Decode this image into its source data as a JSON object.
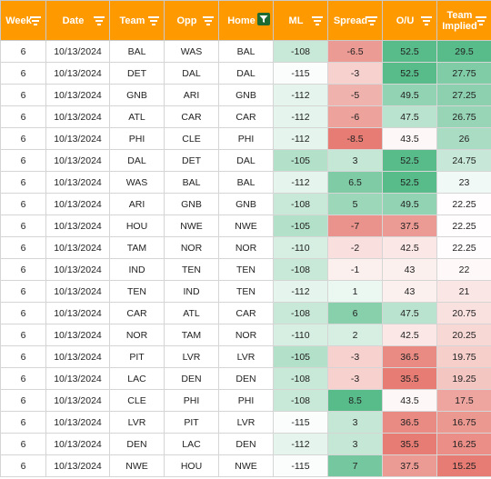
{
  "headers": [
    {
      "key": "week",
      "label": "Week",
      "filter": "filter-icon"
    },
    {
      "key": "date",
      "label": "Date",
      "filter": "filter-icon"
    },
    {
      "key": "team",
      "label": "Team",
      "filter": "filter-icon"
    },
    {
      "key": "opp",
      "label": "Opp",
      "filter": "filter-icon"
    },
    {
      "key": "home",
      "label": "Home",
      "filter": "filter-active-icon"
    },
    {
      "key": "ml",
      "label": "ML",
      "filter": "filter-icon"
    },
    {
      "key": "spread",
      "label": "Spread",
      "filter": "filter-icon"
    },
    {
      "key": "ou",
      "label": "O/U",
      "filter": "filter-icon"
    },
    {
      "key": "implied",
      "label": "Team Implied",
      "filter": "filter-icon"
    }
  ],
  "colors": {
    "header_bg": "#ff9900",
    "header_text": "#ffffff",
    "active_filter_bg": "#1d6b33",
    "scale_red": "#e67c73",
    "scale_white": "#ffffff",
    "scale_green": "#57bb8a"
  },
  "rows": [
    {
      "week": "6",
      "date": "10/13/2024",
      "team": "BAL",
      "opp": "WAS",
      "home": "BAL",
      "ml": "-108",
      "spread": "-6.5",
      "ou": "52.5",
      "implied": "29.5"
    },
    {
      "week": "6",
      "date": "10/13/2024",
      "team": "DET",
      "opp": "DAL",
      "home": "DAL",
      "ml": "-115",
      "spread": "-3",
      "ou": "52.5",
      "implied": "27.75"
    },
    {
      "week": "6",
      "date": "10/13/2024",
      "team": "GNB",
      "opp": "ARI",
      "home": "GNB",
      "ml": "-112",
      "spread": "-5",
      "ou": "49.5",
      "implied": "27.25"
    },
    {
      "week": "6",
      "date": "10/13/2024",
      "team": "ATL",
      "opp": "CAR",
      "home": "CAR",
      "ml": "-112",
      "spread": "-6",
      "ou": "47.5",
      "implied": "26.75"
    },
    {
      "week": "6",
      "date": "10/13/2024",
      "team": "PHI",
      "opp": "CLE",
      "home": "PHI",
      "ml": "-112",
      "spread": "-8.5",
      "ou": "43.5",
      "implied": "26"
    },
    {
      "week": "6",
      "date": "10/13/2024",
      "team": "DAL",
      "opp": "DET",
      "home": "DAL",
      "ml": "-105",
      "spread": "3",
      "ou": "52.5",
      "implied": "24.75"
    },
    {
      "week": "6",
      "date": "10/13/2024",
      "team": "WAS",
      "opp": "BAL",
      "home": "BAL",
      "ml": "-112",
      "spread": "6.5",
      "ou": "52.5",
      "implied": "23"
    },
    {
      "week": "6",
      "date": "10/13/2024",
      "team": "ARI",
      "opp": "GNB",
      "home": "GNB",
      "ml": "-108",
      "spread": "5",
      "ou": "49.5",
      "implied": "22.25"
    },
    {
      "week": "6",
      "date": "10/13/2024",
      "team": "HOU",
      "opp": "NWE",
      "home": "NWE",
      "ml": "-105",
      "spread": "-7",
      "ou": "37.5",
      "implied": "22.25"
    },
    {
      "week": "6",
      "date": "10/13/2024",
      "team": "TAM",
      "opp": "NOR",
      "home": "NOR",
      "ml": "-110",
      "spread": "-2",
      "ou": "42.5",
      "implied": "22.25"
    },
    {
      "week": "6",
      "date": "10/13/2024",
      "team": "IND",
      "opp": "TEN",
      "home": "TEN",
      "ml": "-108",
      "spread": "-1",
      "ou": "43",
      "implied": "22"
    },
    {
      "week": "6",
      "date": "10/13/2024",
      "team": "TEN",
      "opp": "IND",
      "home": "TEN",
      "ml": "-112",
      "spread": "1",
      "ou": "43",
      "implied": "21"
    },
    {
      "week": "6",
      "date": "10/13/2024",
      "team": "CAR",
      "opp": "ATL",
      "home": "CAR",
      "ml": "-108",
      "spread": "6",
      "ou": "47.5",
      "implied": "20.75"
    },
    {
      "week": "6",
      "date": "10/13/2024",
      "team": "NOR",
      "opp": "TAM",
      "home": "NOR",
      "ml": "-110",
      "spread": "2",
      "ou": "42.5",
      "implied": "20.25"
    },
    {
      "week": "6",
      "date": "10/13/2024",
      "team": "PIT",
      "opp": "LVR",
      "home": "LVR",
      "ml": "-105",
      "spread": "-3",
      "ou": "36.5",
      "implied": "19.75"
    },
    {
      "week": "6",
      "date": "10/13/2024",
      "team": "LAC",
      "opp": "DEN",
      "home": "DEN",
      "ml": "-108",
      "spread": "-3",
      "ou": "35.5",
      "implied": "19.25"
    },
    {
      "week": "6",
      "date": "10/13/2024",
      "team": "CLE",
      "opp": "PHI",
      "home": "PHI",
      "ml": "-108",
      "spread": "8.5",
      "ou": "43.5",
      "implied": "17.5"
    },
    {
      "week": "6",
      "date": "10/13/2024",
      "team": "LVR",
      "opp": "PIT",
      "home": "LVR",
      "ml": "-115",
      "spread": "3",
      "ou": "36.5",
      "implied": "16.75"
    },
    {
      "week": "6",
      "date": "10/13/2024",
      "team": "DEN",
      "opp": "LAC",
      "home": "DEN",
      "ml": "-112",
      "spread": "3",
      "ou": "35.5",
      "implied": "16.25"
    },
    {
      "week": "6",
      "date": "10/13/2024",
      "team": "NWE",
      "opp": "HOU",
      "home": "NWE",
      "ml": "-115",
      "spread": "7",
      "ou": "37.5",
      "implied": "15.25"
    }
  ]
}
